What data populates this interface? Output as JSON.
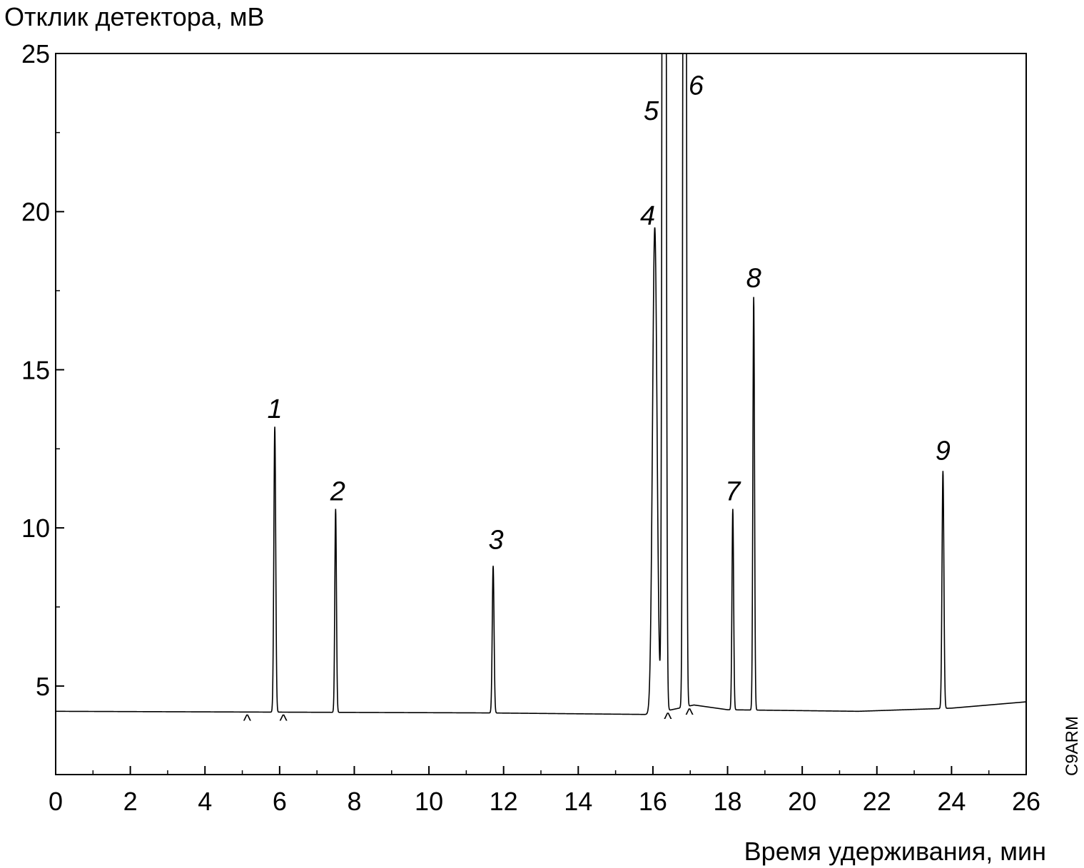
{
  "chart_data": {
    "type": "line",
    "title": "",
    "ylabel": "Отклик детектора, мВ",
    "xlabel": "Время удерживания, мин",
    "xlim": [
      0,
      26
    ],
    "ylim": [
      2.2,
      25
    ],
    "x_ticks": [
      0,
      2,
      4,
      6,
      8,
      10,
      12,
      14,
      16,
      18,
      20,
      22,
      24,
      26
    ],
    "y_ticks": [
      5,
      10,
      15,
      20,
      25
    ],
    "grid": false,
    "legend": "none",
    "baseline": [
      [
        0,
        4.2
      ],
      [
        11.5,
        4.15
      ],
      [
        15.9,
        4.1
      ],
      [
        17.1,
        4.4
      ],
      [
        18.0,
        4.25
      ],
      [
        21.5,
        4.2
      ],
      [
        24.0,
        4.3
      ],
      [
        26.0,
        4.5
      ]
    ],
    "peaks": [
      {
        "label": "1",
        "x": 5.87,
        "y": 13.2
      },
      {
        "label": "2",
        "x": 7.5,
        "y": 10.6
      },
      {
        "label": "3",
        "x": 11.72,
        "y": 8.8
      },
      {
        "label": "4",
        "x": 16.05,
        "y": 19.5
      },
      {
        "label": "5",
        "x": 16.3,
        "y": 25
      },
      {
        "label": "6",
        "x": 16.85,
        "y": 25
      },
      {
        "label": "7",
        "x": 18.14,
        "y": 10.6
      },
      {
        "label": "8",
        "x": 18.7,
        "y": 17.3
      },
      {
        "label": "9",
        "x": 23.77,
        "y": 11.8
      }
    ],
    "integration_marks": [
      5.13,
      6.1,
      16.4,
      16.98
    ],
    "integration_mark_symbol": "^"
  },
  "figure_code": "C9ARM"
}
